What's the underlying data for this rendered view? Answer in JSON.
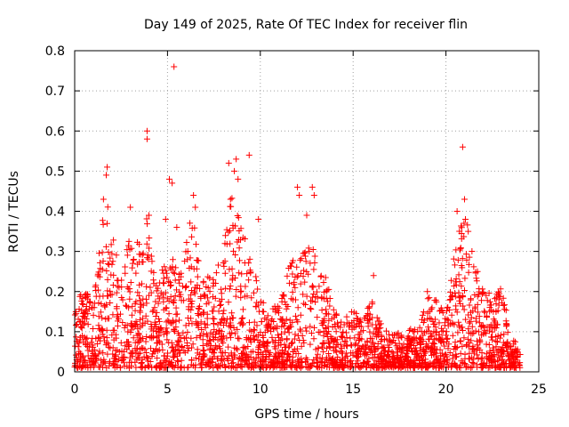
{
  "chart_data": {
    "type": "scatter",
    "title": "Day 149 of 2025, Rate Of TEC Index for receiver flin",
    "xlabel": "GPS time / hours",
    "ylabel": "ROTI / TECUs",
    "xlim": [
      0,
      25
    ],
    "ylim": [
      0,
      0.8
    ],
    "xticks": [
      0,
      5,
      10,
      15,
      20,
      25
    ],
    "yticks": [
      0,
      0.1,
      0.2,
      0.3,
      0.4,
      0.5,
      0.6,
      0.7,
      0.8
    ],
    "xtick_labels": [
      "0",
      "5",
      "10",
      "15",
      "20",
      "25"
    ],
    "ytick_labels": [
      "0",
      "0.1",
      "0.2",
      "0.3",
      "0.4",
      "0.5",
      "0.6",
      "0.7",
      "0.8"
    ],
    "grid": true,
    "marker": "plus",
    "color": "#ff0000",
    "series": [
      {
        "name": "ROTI",
        "envelope_x": [
          0.0,
          0.5,
          1.0,
          1.5,
          1.8,
          2.2,
          2.6,
          3.0,
          3.5,
          3.9,
          4.3,
          4.8,
          5.2,
          5.6,
          6.0,
          6.4,
          6.8,
          7.2,
          7.6,
          8.0,
          8.4,
          8.8,
          9.2,
          9.6,
          10.0,
          10.5,
          11.0,
          11.5,
          12.0,
          12.5,
          13.0,
          13.5,
          14.0,
          14.5,
          15.0,
          15.5,
          16.0,
          16.5,
          17.0,
          17.5,
          18.0,
          18.5,
          19.0,
          19.5,
          20.0,
          20.5,
          21.0,
          21.5,
          22.0,
          22.5,
          23.0,
          23.5,
          24.0
        ],
        "envelope_y": [
          0.13,
          0.22,
          0.15,
          0.38,
          0.42,
          0.29,
          0.24,
          0.34,
          0.31,
          0.38,
          0.22,
          0.25,
          0.3,
          0.24,
          0.34,
          0.38,
          0.22,
          0.24,
          0.24,
          0.3,
          0.44,
          0.38,
          0.32,
          0.27,
          0.17,
          0.15,
          0.16,
          0.25,
          0.3,
          0.3,
          0.3,
          0.23,
          0.14,
          0.12,
          0.15,
          0.12,
          0.19,
          0.11,
          0.08,
          0.09,
          0.1,
          0.1,
          0.19,
          0.17,
          0.13,
          0.3,
          0.42,
          0.26,
          0.2,
          0.18,
          0.2,
          0.09,
          0.04
        ],
        "point_count": 2600,
        "outliers": [
          {
            "x": 1.55,
            "y": 0.43
          },
          {
            "x": 1.7,
            "y": 0.49
          },
          {
            "x": 1.75,
            "y": 0.51
          },
          {
            "x": 3.0,
            "y": 0.41
          },
          {
            "x": 3.9,
            "y": 0.6
          },
          {
            "x": 3.9,
            "y": 0.58
          },
          {
            "x": 4.0,
            "y": 0.39
          },
          {
            "x": 4.9,
            "y": 0.38
          },
          {
            "x": 5.1,
            "y": 0.48
          },
          {
            "x": 5.25,
            "y": 0.47
          },
          {
            "x": 5.35,
            "y": 0.76
          },
          {
            "x": 5.5,
            "y": 0.36
          },
          {
            "x": 6.4,
            "y": 0.44
          },
          {
            "x": 6.5,
            "y": 0.41
          },
          {
            "x": 8.3,
            "y": 0.52
          },
          {
            "x": 8.6,
            "y": 0.5
          },
          {
            "x": 8.7,
            "y": 0.53
          },
          {
            "x": 8.8,
            "y": 0.48
          },
          {
            "x": 9.4,
            "y": 0.54
          },
          {
            "x": 9.9,
            "y": 0.38
          },
          {
            "x": 12.0,
            "y": 0.46
          },
          {
            "x": 12.1,
            "y": 0.44
          },
          {
            "x": 12.5,
            "y": 0.39
          },
          {
            "x": 12.8,
            "y": 0.46
          },
          {
            "x": 12.9,
            "y": 0.44
          },
          {
            "x": 16.1,
            "y": 0.24
          },
          {
            "x": 19.0,
            "y": 0.2
          },
          {
            "x": 20.6,
            "y": 0.4
          },
          {
            "x": 20.9,
            "y": 0.56
          },
          {
            "x": 21.0,
            "y": 0.43
          },
          {
            "x": 21.05,
            "y": 0.38
          },
          {
            "x": 21.2,
            "y": 0.35
          },
          {
            "x": 21.7,
            "y": 0.25
          }
        ]
      }
    ]
  }
}
